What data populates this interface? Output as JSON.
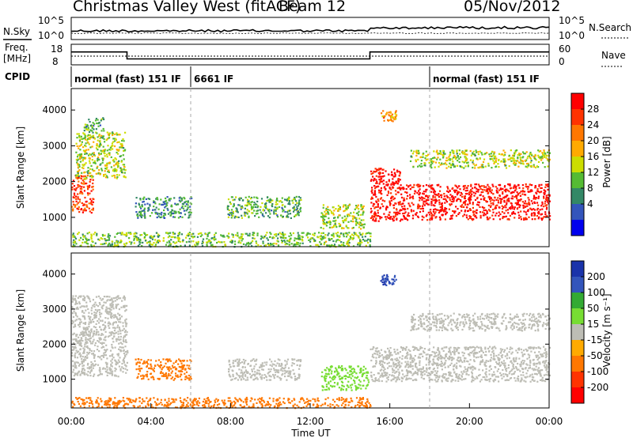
{
  "header": {
    "station": "Christmas Valley West (fitACF)",
    "beam": "Beam 12",
    "date": "05/Nov/2012"
  },
  "noise_panel": {
    "left_label": "N.Sky",
    "right_label": "N.Search",
    "left_ticks": [
      "10^5",
      "10^0"
    ],
    "right_ticks": [
      "10^5",
      "10^0"
    ]
  },
  "freq_panel": {
    "left_label_1": "Freq.",
    "left_label_2": "[MHz]",
    "right_label": "Nave",
    "left_ticks": [
      "18",
      "8"
    ],
    "right_ticks": [
      "60",
      "0"
    ],
    "freq_steps": [
      {
        "from_h": 0.0,
        "to_h": 2.8,
        "freq_mhz": 14.5
      },
      {
        "from_h": 2.8,
        "to_h": 15.0,
        "freq_mhz": 10.5
      },
      {
        "from_h": 15.0,
        "to_h": 24.0,
        "freq_mhz": 14.5
      }
    ]
  },
  "cpid": {
    "label": "CPID",
    "segments": [
      {
        "start_h": 0.0,
        "label": "normal (fast) 151 IF"
      },
      {
        "start_h": 6.0,
        "label": "6661 IF"
      },
      {
        "start_h": 18.0,
        "label": "normal (fast) 151 IF"
      }
    ]
  },
  "power_colorbar": {
    "label": "Power [dB]",
    "ticks": [
      "28",
      "24",
      "20",
      "16",
      "12",
      "8",
      "4"
    ],
    "colors": [
      "#ff0000",
      "#ff3300",
      "#ff7700",
      "#ffaa00",
      "#ccdd00",
      "#55bb33",
      "#338866",
      "#3355bb",
      "#0000ee"
    ]
  },
  "velocity_colorbar": {
    "label": "Velocity [m s⁻¹]",
    "ticks": [
      "200",
      "100",
      "50",
      "15",
      "-15",
      "-50",
      "-100",
      "-200"
    ],
    "colors": [
      "#1a33aa",
      "#3355bb",
      "#33aa33",
      "#77dd33",
      "#bdbdb5",
      "#ffaa00",
      "#ff7700",
      "#ff3300",
      "#ff0000"
    ]
  },
  "axes": {
    "y_label": "Slant Range [km]",
    "y_ticks": [
      "4000",
      "3000",
      "2000",
      "1000"
    ],
    "x_label": "Time UT",
    "x_ticks": [
      "00:00",
      "04:00",
      "08:00",
      "12:00",
      "16:00",
      "20:00",
      "00:00"
    ]
  },
  "chart_data": [
    {
      "type": "heatmap",
      "title": "Power",
      "quantity": "Power [dB]",
      "xlabel": "Time UT",
      "ylabel": "Slant Range [km]",
      "xlim_h": [
        0,
        24
      ],
      "ylim_km": [
        180,
        4600
      ],
      "regions": [
        {
          "t0": 0.0,
          "t1": 1.1,
          "r0": 1150,
          "r1": 2200,
          "value": 26
        },
        {
          "t0": 0.2,
          "t1": 2.7,
          "r0": 2100,
          "r1": 3400,
          "value": 14
        },
        {
          "t0": 0.6,
          "t1": 1.6,
          "r0": 3400,
          "r1": 3800,
          "value": 10
        },
        {
          "t0": 3.2,
          "t1": 6.0,
          "r0": 1000,
          "r1": 1600,
          "value": 8
        },
        {
          "t0": 7.8,
          "t1": 11.5,
          "r0": 1000,
          "r1": 1600,
          "value": 10
        },
        {
          "t0": 12.5,
          "t1": 14.7,
          "r0": 700,
          "r1": 1400,
          "value": 14
        },
        {
          "t0": 0.0,
          "t1": 15.0,
          "r0": 200,
          "r1": 600,
          "value": 12
        },
        {
          "t0": 15.0,
          "t1": 16.5,
          "r0": 900,
          "r1": 2400,
          "value": 30
        },
        {
          "t0": 16.5,
          "t1": 24.0,
          "r0": 950,
          "r1": 1950,
          "value": 30
        },
        {
          "t0": 15.5,
          "t1": 16.3,
          "r0": 3700,
          "r1": 4000,
          "value": 20
        },
        {
          "t0": 17.0,
          "t1": 24.0,
          "r0": 2400,
          "r1": 2900,
          "value": 14
        }
      ]
    },
    {
      "type": "heatmap",
      "title": "Velocity",
      "quantity": "Velocity [m s-1]",
      "xlabel": "Time UT",
      "ylabel": "Slant Range [km]",
      "xlim_h": [
        0,
        24
      ],
      "ylim_km": [
        180,
        4600
      ],
      "regions": [
        {
          "t0": 0.0,
          "t1": 2.8,
          "r0": 1100,
          "r1": 3400,
          "value": 0
        },
        {
          "t0": 3.2,
          "t1": 6.0,
          "r0": 1000,
          "r1": 1600,
          "value": -60
        },
        {
          "t0": 7.8,
          "t1": 11.5,
          "r0": 1000,
          "r1": 1600,
          "value": 0
        },
        {
          "t0": 12.5,
          "t1": 14.9,
          "r0": 700,
          "r1": 1400,
          "value": 40
        },
        {
          "t0": 0.0,
          "t1": 15.0,
          "r0": 200,
          "r1": 500,
          "value": -60
        },
        {
          "t0": 15.0,
          "t1": 24.0,
          "r0": 950,
          "r1": 1950,
          "value": 0
        },
        {
          "t0": 15.5,
          "t1": 16.3,
          "r0": 3700,
          "r1": 4000,
          "value": 200
        },
        {
          "t0": 17.0,
          "t1": 24.0,
          "r0": 2400,
          "r1": 2900,
          "value": 0
        }
      ]
    }
  ]
}
